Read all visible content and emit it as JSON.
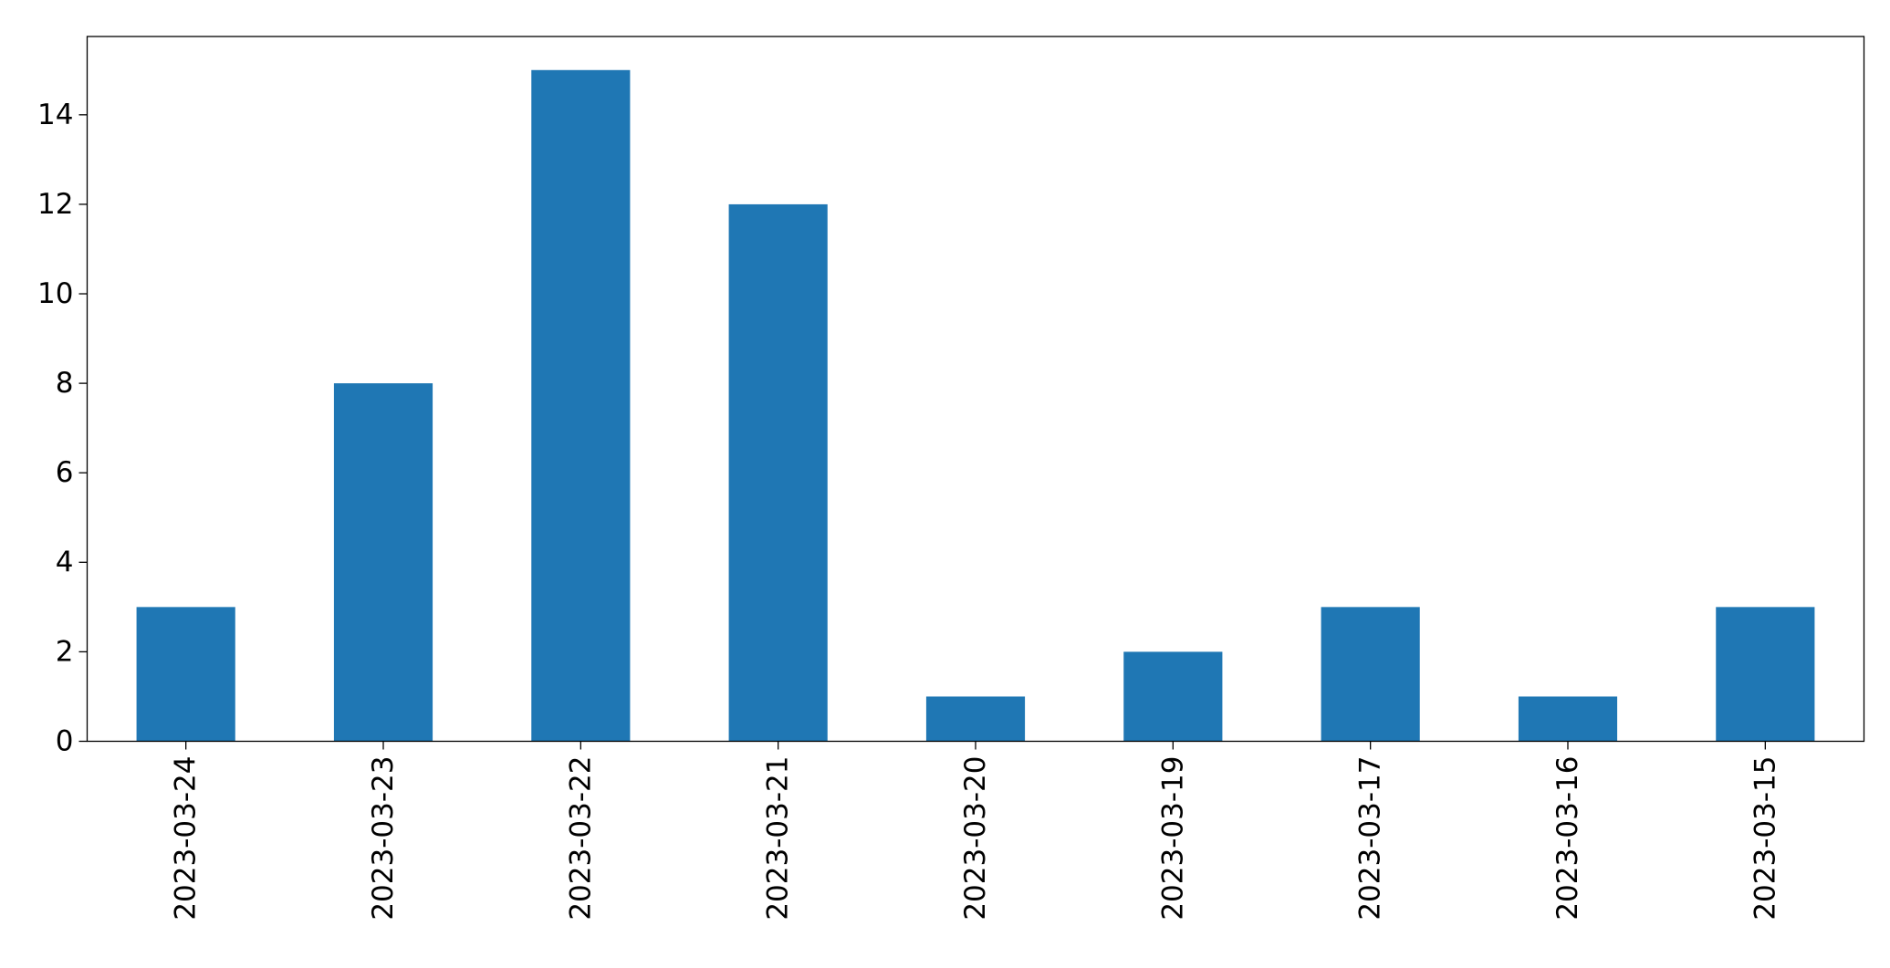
{
  "chart_data": {
    "type": "bar",
    "title": "",
    "xlabel": "",
    "ylabel": "",
    "categories": [
      "2023-03-24",
      "2023-03-23",
      "2023-03-22",
      "2023-03-21",
      "2023-03-20",
      "2023-03-19",
      "2023-03-17",
      "2023-03-16",
      "2023-03-15"
    ],
    "values": [
      3,
      8,
      15,
      12,
      1,
      2,
      3,
      1,
      3
    ],
    "ylim": [
      0,
      15.75
    ],
    "yticks": [
      0,
      2,
      4,
      6,
      8,
      10,
      12,
      14
    ],
    "grid": false,
    "legend": "none",
    "x_tick_rotation": 90,
    "bar_color": "#1f77b4"
  }
}
